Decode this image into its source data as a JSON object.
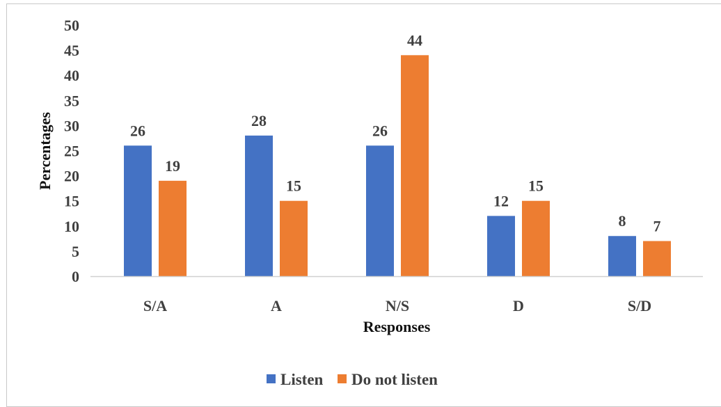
{
  "chart_data": {
    "type": "bar",
    "title": "",
    "xlabel": "Responses",
    "ylabel": "Percentages",
    "ylim": [
      0,
      50
    ],
    "yticks": [
      0,
      5,
      10,
      15,
      20,
      25,
      30,
      35,
      40,
      45,
      50
    ],
    "grid": false,
    "legend_position": "bottom",
    "categories": [
      "S/A",
      "A",
      "N/S",
      "D",
      "S/D"
    ],
    "series": [
      {
        "name": "Listen",
        "color": "#4472c4",
        "values": [
          26,
          28,
          26,
          12,
          8
        ]
      },
      {
        "name": "Do not listen",
        "color": "#ed7d31",
        "values": [
          19,
          15,
          44,
          15,
          7
        ]
      }
    ]
  }
}
